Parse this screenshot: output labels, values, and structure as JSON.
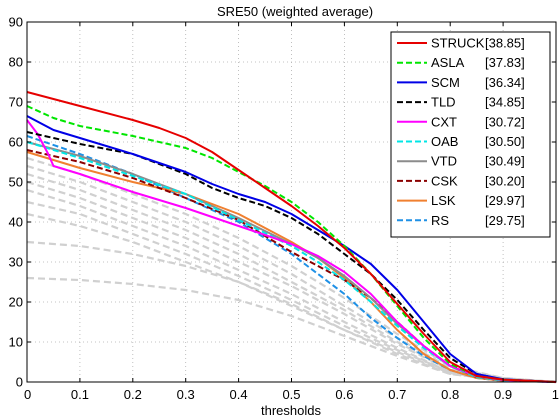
{
  "chart_data": {
    "type": "line",
    "title": "SRE50 (weighted average)",
    "xlabel": "thresholds",
    "ylabel": "",
    "xlim": [
      0,
      1
    ],
    "ylim": [
      0,
      90
    ],
    "xticks": [
      "0",
      "0.1",
      "0.2",
      "0.3",
      "0.4",
      "0.5",
      "0.6",
      "0.7",
      "0.8",
      "0.9",
      "1"
    ],
    "yticks": [
      "0",
      "10",
      "20",
      "30",
      "40",
      "50",
      "60",
      "70",
      "80",
      "90"
    ],
    "grid": true,
    "legend_position": "top-right",
    "series": [
      {
        "name": "STRUCK",
        "score": "[38.85]",
        "color": "#e60000",
        "style": "solid",
        "x": [
          0,
          0.1,
          0.2,
          0.25,
          0.3,
          0.35,
          0.4,
          0.45,
          0.5,
          0.55,
          0.6,
          0.65,
          0.7,
          0.75,
          0.8,
          0.85,
          0.9,
          0.95,
          1.0
        ],
        "values": [
          72.5,
          69,
          65.5,
          63.5,
          61,
          57.5,
          53,
          48.5,
          44,
          39,
          33.5,
          27,
          19.5,
          12,
          5,
          1.5,
          0.6,
          0.3,
          0
        ]
      },
      {
        "name": "ASLA",
        "score": "[37.83]",
        "color": "#00e600",
        "style": "dashed",
        "x": [
          0,
          0.05,
          0.1,
          0.2,
          0.3,
          0.35,
          0.4,
          0.45,
          0.5,
          0.55,
          0.6,
          0.65,
          0.7,
          0.75,
          0.8,
          0.85,
          0.9,
          0.95,
          1.0
        ],
        "values": [
          69,
          66,
          64,
          61.5,
          58.5,
          56,
          52.5,
          49,
          45,
          40,
          34,
          27,
          19,
          11,
          4.5,
          1.5,
          0.6,
          0.3,
          0
        ]
      },
      {
        "name": "SCM",
        "score": "[36.34]",
        "color": "#0000e6",
        "style": "solid",
        "x": [
          0,
          0.05,
          0.1,
          0.2,
          0.3,
          0.35,
          0.4,
          0.45,
          0.5,
          0.55,
          0.6,
          0.65,
          0.7,
          0.75,
          0.8,
          0.85,
          0.9,
          0.95,
          1.0
        ],
        "values": [
          66.5,
          63,
          61,
          57,
          52.5,
          49.5,
          47,
          45,
          42,
          38,
          34,
          29.5,
          23,
          15,
          7,
          2,
          0.7,
          0.3,
          0
        ]
      },
      {
        "name": "TLD",
        "score": "[34.85]",
        "color": "#000000",
        "style": "dashed",
        "x": [
          0,
          0.05,
          0.1,
          0.2,
          0.3,
          0.35,
          0.4,
          0.45,
          0.5,
          0.55,
          0.6,
          0.65,
          0.7,
          0.75,
          0.8,
          0.85,
          0.9,
          0.95,
          1.0
        ],
        "values": [
          62.5,
          61,
          59.5,
          57,
          52,
          48.5,
          46,
          44,
          41,
          37,
          32,
          27,
          20.5,
          13,
          6,
          2,
          0.6,
          0.3,
          0
        ]
      },
      {
        "name": "CXT",
        "score": "[30.72]",
        "color": "#ff00ff",
        "style": "solid",
        "x": [
          0,
          0.02,
          0.04,
          0.05,
          0.1,
          0.2,
          0.3,
          0.4,
          0.5,
          0.55,
          0.6,
          0.65,
          0.7,
          0.75,
          0.8,
          0.85,
          0.9,
          0.95,
          1.0
        ],
        "values": [
          65.5,
          62,
          57,
          54,
          52,
          47.5,
          43.5,
          39,
          34.5,
          31.5,
          27.5,
          22,
          15,
          9,
          4,
          1.5,
          0.5,
          0.2,
          0
        ]
      },
      {
        "name": "OAB",
        "score": "[30.50]",
        "color": "#00e6e6",
        "style": "dashed",
        "x": [
          0,
          0.1,
          0.2,
          0.3,
          0.4,
          0.5,
          0.55,
          0.6,
          0.65,
          0.7,
          0.75,
          0.8,
          0.85,
          0.9,
          1.0
        ],
        "values": [
          60,
          56,
          51.5,
          47,
          40.5,
          34,
          30,
          25.5,
          20,
          14,
          8.5,
          4,
          1.2,
          0.4,
          0
        ]
      },
      {
        "name": "VTD",
        "score": "[30.49]",
        "color": "#8c8c8c",
        "style": "solid",
        "x": [
          0,
          0.1,
          0.2,
          0.3,
          0.4,
          0.5,
          0.55,
          0.6,
          0.65,
          0.7,
          0.75,
          0.8,
          0.85,
          0.9,
          1.0
        ],
        "values": [
          60,
          56.5,
          52,
          47,
          41,
          34.5,
          31,
          26.5,
          21,
          14.5,
          9,
          4,
          1.3,
          0.4,
          0
        ]
      },
      {
        "name": "CSK",
        "score": "[30.20]",
        "color": "#8b0000",
        "style": "dashed",
        "x": [
          0,
          0.1,
          0.2,
          0.3,
          0.4,
          0.5,
          0.55,
          0.6,
          0.65,
          0.7,
          0.75,
          0.8,
          0.85,
          0.9,
          1.0
        ],
        "values": [
          58,
          55,
          51,
          46,
          40.5,
          32.5,
          29,
          25.5,
          21,
          15,
          9,
          4,
          1.2,
          0.4,
          0
        ]
      },
      {
        "name": "LSK",
        "score": "[29.97]",
        "color": "#f08030",
        "style": "solid",
        "x": [
          0,
          0.1,
          0.2,
          0.3,
          0.4,
          0.5,
          0.55,
          0.6,
          0.65,
          0.7,
          0.75,
          0.8,
          0.85,
          0.9,
          1.0
        ],
        "values": [
          57.5,
          53.5,
          50,
          47,
          42,
          35,
          31,
          26,
          20,
          13,
          7,
          3,
          1,
          0.3,
          0
        ]
      },
      {
        "name": "RS",
        "score": "[29.75]",
        "color": "#1e90e6",
        "style": "dashed",
        "x": [
          0,
          0.1,
          0.2,
          0.3,
          0.4,
          0.5,
          0.55,
          0.6,
          0.65,
          0.7,
          0.75,
          0.8,
          0.85,
          0.9,
          1.0
        ],
        "values": [
          61.5,
          57,
          52,
          46,
          40,
          32,
          27,
          22,
          16,
          11,
          6.5,
          3,
          1,
          0.3,
          0
        ]
      }
    ],
    "background_series": [
      {
        "color": "#d0d0d0",
        "style": "dashed",
        "x": [
          0,
          0.1,
          0.2,
          0.3,
          0.4,
          0.5,
          0.6,
          0.7,
          0.8,
          0.9,
          1.0
        ],
        "values": [
          56,
          52,
          47,
          42,
          36,
          29,
          21,
          12,
          4,
          1,
          0
        ]
      },
      {
        "color": "#d0d0d0",
        "style": "dashed",
        "x": [
          0,
          0.1,
          0.2,
          0.3,
          0.4,
          0.5,
          0.6,
          0.7,
          0.8,
          0.9,
          1.0
        ],
        "values": [
          54,
          50,
          45,
          40,
          34,
          27,
          19,
          11,
          3.5,
          1,
          0
        ]
      },
      {
        "color": "#d0d0d0",
        "style": "dashed",
        "x": [
          0,
          0.1,
          0.2,
          0.3,
          0.4,
          0.5,
          0.6,
          0.7,
          0.8,
          0.9,
          1.0
        ],
        "values": [
          52,
          48,
          43,
          38,
          32,
          25,
          18,
          10,
          3,
          0.8,
          0
        ]
      },
      {
        "color": "#d0d0d0",
        "style": "dashed",
        "x": [
          0,
          0.1,
          0.2,
          0.3,
          0.4,
          0.5,
          0.6,
          0.7,
          0.8,
          0.9,
          1.0
        ],
        "values": [
          50,
          46,
          41,
          36,
          30,
          24,
          17,
          9.5,
          3,
          0.8,
          0
        ]
      },
      {
        "color": "#d0d0d0",
        "style": "dashed",
        "x": [
          0,
          0.1,
          0.2,
          0.3,
          0.4,
          0.5,
          0.6,
          0.7,
          0.8,
          0.9,
          1.0
        ],
        "values": [
          48,
          44,
          39,
          34,
          28,
          22,
          15,
          8.5,
          2.5,
          0.7,
          0
        ]
      },
      {
        "color": "#d0d0d0",
        "style": "dashed",
        "x": [
          0,
          0.1,
          0.2,
          0.3,
          0.4,
          0.5,
          0.6,
          0.7,
          0.8,
          0.9,
          1.0
        ],
        "values": [
          45,
          42,
          37,
          32,
          26.5,
          20.5,
          14,
          8,
          2.5,
          0.6,
          0
        ]
      },
      {
        "color": "#d0d0d0",
        "style": "dashed",
        "x": [
          0,
          0.1,
          0.2,
          0.3,
          0.4,
          0.5,
          0.6,
          0.7,
          0.8,
          0.9,
          1.0
        ],
        "values": [
          42,
          39,
          35,
          30,
          25,
          19,
          13,
          7.5,
          2.2,
          0.6,
          0
        ]
      },
      {
        "color": "#d0d0d0",
        "style": "dashed",
        "x": [
          0,
          0.1,
          0.2,
          0.3,
          0.4,
          0.5,
          0.6,
          0.7,
          0.8,
          0.9,
          1.0
        ],
        "values": [
          35,
          34,
          32,
          29,
          25,
          19.5,
          13,
          7,
          2,
          0.5,
          0
        ]
      },
      {
        "color": "#d0d0d0",
        "style": "dashed",
        "x": [
          0,
          0.1,
          0.2,
          0.3,
          0.4,
          0.5,
          0.6,
          0.7,
          0.8,
          0.9,
          1.0
        ],
        "values": [
          26,
          25.5,
          24.5,
          23,
          20.5,
          16.5,
          11.5,
          6.5,
          2,
          0.5,
          0
        ]
      }
    ]
  }
}
